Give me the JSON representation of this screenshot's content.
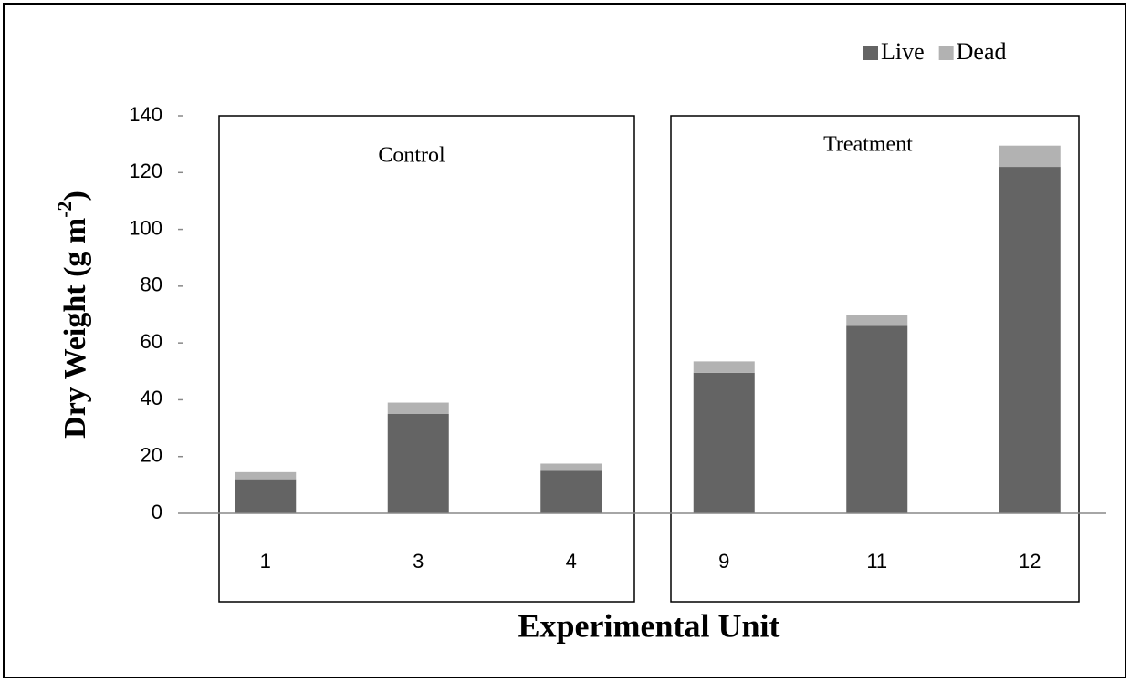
{
  "chart_data": {
    "type": "stacked_bar",
    "y_label": {
      "text": "Dry Weight (g m",
      "sup": "-2",
      "tail": ")"
    },
    "x_label": "Experimental Unit",
    "categories": [
      "1",
      "3",
      "4",
      "9",
      "11",
      "12"
    ],
    "series": [
      {
        "name": "Live",
        "color": "#646464",
        "values": [
          12,
          35,
          15,
          49.5,
          66,
          122
        ]
      },
      {
        "name": "Dead",
        "color": "#b2b2b2",
        "values": [
          2.5,
          4,
          2.5,
          4,
          4,
          7.5
        ]
      }
    ],
    "annotations": [
      {
        "text": "Control"
      },
      {
        "text": "Treatment"
      }
    ],
    "ylim": [
      0,
      140
    ],
    "yticks": [
      0,
      20,
      40,
      60,
      80,
      100,
      120,
      140
    ],
    "legend": "top-right"
  }
}
